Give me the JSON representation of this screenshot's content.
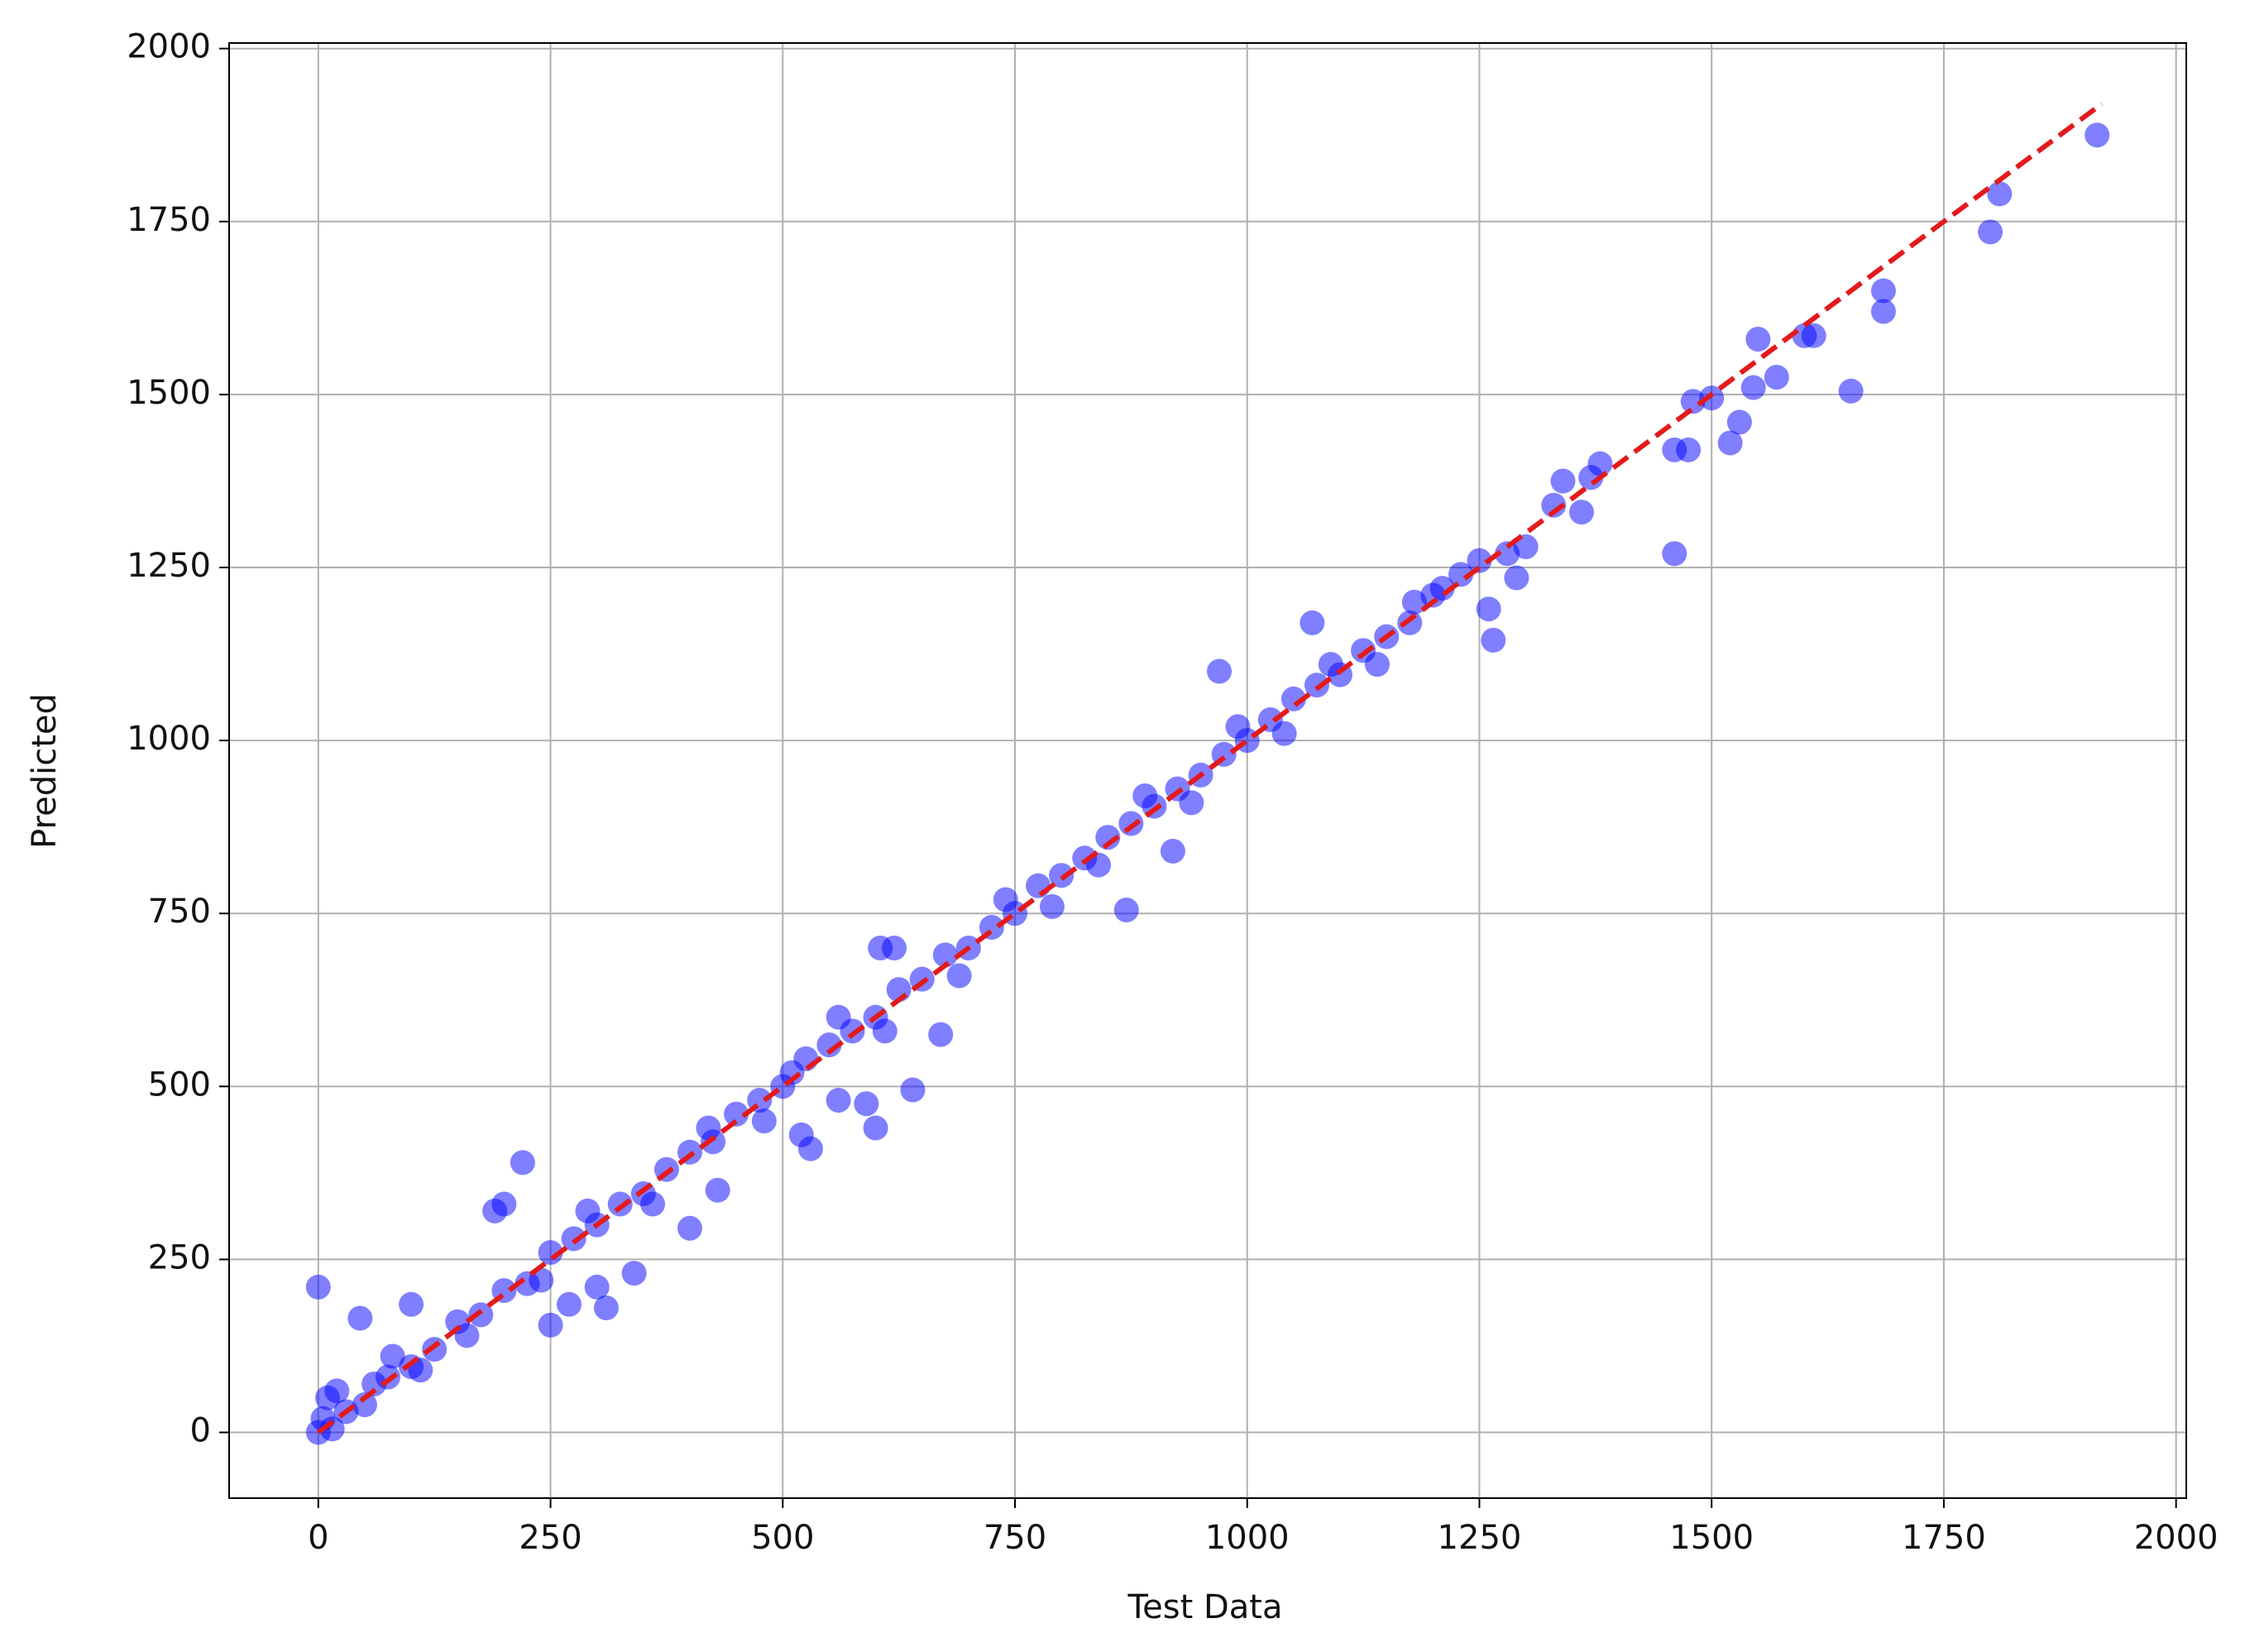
{
  "chart_data": {
    "type": "scatter",
    "xlabel": "Test Data",
    "ylabel": "Predicted",
    "x": [
      0,
      5,
      10,
      15,
      20,
      30,
      50,
      60,
      75,
      80,
      100,
      125,
      150,
      175,
      200,
      225,
      250,
      275,
      300,
      325,
      350,
      375,
      400,
      425,
      450,
      475,
      500,
      525,
      550,
      575,
      600,
      625,
      650,
      675,
      700,
      725,
      750,
      775,
      800,
      825,
      850,
      875,
      900,
      925,
      950,
      975,
      1000,
      1025,
      1050,
      1075,
      1100,
      1125,
      1150,
      1175,
      1200,
      1230,
      1250,
      110,
      160,
      240,
      290,
      360,
      420,
      480,
      510,
      560,
      610,
      690,
      740,
      790,
      840,
      890,
      940,
      990,
      1040,
      1090,
      1140,
      0,
      45,
      100,
      190,
      200,
      220,
      250,
      270,
      300,
      310,
      340,
      400,
      430,
      520,
      530,
      560,
      590,
      600,
      605,
      620,
      640,
      670,
      870,
      920,
      970,
      1070,
      1260,
      1265,
      1460,
      1460,
      1475,
      1480,
      1500,
      1520,
      1530,
      1545,
      1550,
      1570,
      1600,
      1610,
      1650,
      1685,
      1685,
      1800,
      1810,
      1915,
      1330,
      1340,
      1360,
      1370,
      1380,
      1300,
      1280,
      1290,
      1210,
      1180
    ],
    "values": [
      0,
      20,
      50,
      5,
      60,
      30,
      40,
      70,
      80,
      110,
      95,
      120,
      160,
      170,
      205,
      215,
      260,
      280,
      300,
      330,
      345,
      380,
      405,
      420,
      460,
      480,
      500,
      540,
      560,
      580,
      600,
      640,
      655,
      690,
      700,
      730,
      750,
      790,
      805,
      830,
      860,
      880,
      905,
      930,
      950,
      980,
      1000,
      1030,
      1060,
      1080,
      1095,
      1130,
      1150,
      1170,
      1210,
      1240,
      1260,
      90,
      140,
      220,
      320,
      330,
      440,
      450,
      520,
      600,
      580,
      660,
      770,
      760,
      820,
      920,
      910,
      1020,
      1010,
      1110,
      1110,
      210,
      165,
      185,
      320,
      330,
      390,
      155,
      185,
      210,
      180,
      230,
      295,
      350,
      430,
      410,
      480,
      475,
      440,
      700,
      700,
      495,
      575,
      755,
      840,
      1100,
      1170,
      1190,
      1145,
      1270,
      1420,
      1420,
      1490,
      1495,
      1430,
      1460,
      1510,
      1580,
      1525,
      1585,
      1585,
      1505,
      1650,
      1620,
      1735,
      1790,
      1875,
      1340,
      1375,
      1330,
      1380,
      1400,
      1280,
      1270,
      1235,
      1220,
      1200
    ],
    "color": "#0000ff",
    "alpha": 0.5,
    "reference_line": {
      "x": [
        0,
        1920
      ],
      "y": [
        0,
        1920
      ],
      "color": "#e31a1c",
      "dashed": true
    },
    "xlim": [
      -96,
      2011
    ],
    "ylim": [
      -95,
      2008
    ],
    "xticks": [
      0,
      250,
      500,
      750,
      1000,
      1250,
      1500,
      1750,
      2000
    ],
    "yticks": [
      0,
      250,
      500,
      750,
      1000,
      1250,
      1500,
      1750,
      2000
    ],
    "grid": true
  }
}
